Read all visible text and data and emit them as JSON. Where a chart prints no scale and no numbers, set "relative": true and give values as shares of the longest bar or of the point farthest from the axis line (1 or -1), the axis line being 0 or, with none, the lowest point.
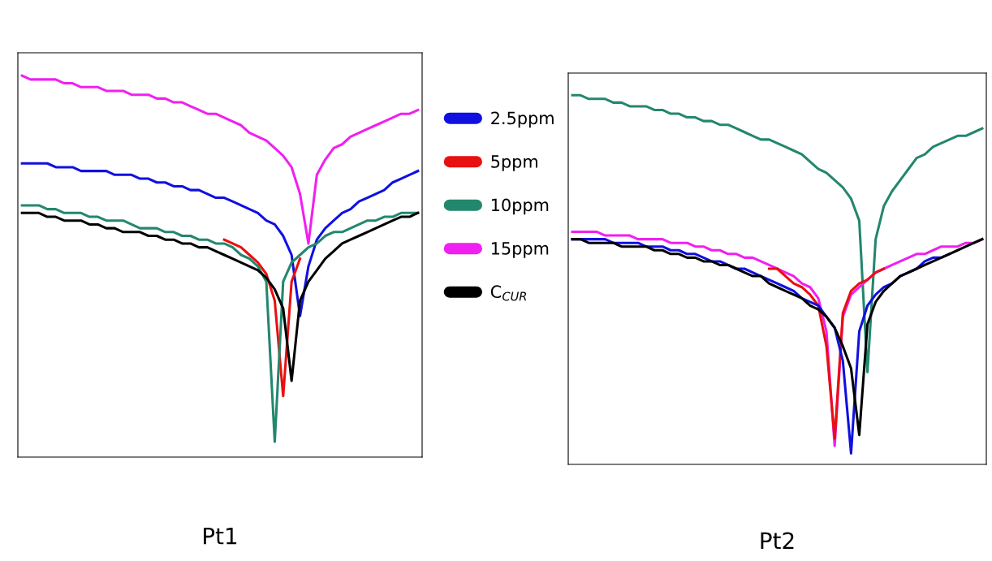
{
  "chart_data": [
    {
      "type": "line",
      "title": "Pt1",
      "relative": true,
      "legend": "right",
      "categories": [
        null,
        null,
        null,
        null,
        null,
        null,
        null,
        null,
        null,
        null,
        null,
        null,
        null,
        null,
        null,
        null,
        null,
        null,
        null,
        null,
        null,
        null,
        null,
        null,
        null,
        null,
        null,
        null,
        null,
        null,
        null,
        null,
        null,
        null,
        null,
        null,
        null,
        null,
        null,
        null,
        null,
        null,
        null,
        null,
        null,
        null,
        null,
        null
      ],
      "series": [
        {
          "name": "2.5ppm",
          "color": "#1010e0",
          "values": [
            0.77,
            0.77,
            0.77,
            0.77,
            0.76,
            0.76,
            0.76,
            0.75,
            0.75,
            0.75,
            0.75,
            0.74,
            0.74,
            0.74,
            0.73,
            0.73,
            0.72,
            0.72,
            0.71,
            0.71,
            0.7,
            0.7,
            0.69,
            0.68,
            0.68,
            0.67,
            0.66,
            0.65,
            0.64,
            0.62,
            0.61,
            0.58,
            0.53,
            0.37,
            0.5,
            0.57,
            0.6,
            0.62,
            0.64,
            0.65,
            0.67,
            0.68,
            0.69,
            0.7,
            0.72,
            0.73,
            0.74,
            0.75
          ]
        },
        {
          "name": "5ppm",
          "color": "#e81010",
          "values": [
            null,
            null,
            null,
            null,
            null,
            null,
            null,
            null,
            null,
            null,
            null,
            null,
            null,
            null,
            null,
            null,
            null,
            null,
            null,
            null,
            null,
            null,
            null,
            null,
            0.57,
            0.56,
            0.55,
            0.53,
            0.51,
            0.48,
            0.41,
            0.16,
            0.46,
            0.52,
            null,
            null,
            null,
            null,
            null,
            null,
            null,
            null,
            null,
            null,
            null,
            null,
            null,
            null
          ]
        },
        {
          "name": "10ppm",
          "color": "#23876e",
          "values": [
            0.66,
            0.66,
            0.66,
            0.65,
            0.65,
            0.64,
            0.64,
            0.64,
            0.63,
            0.63,
            0.62,
            0.62,
            0.62,
            0.61,
            0.6,
            0.6,
            0.6,
            0.59,
            0.59,
            0.58,
            0.58,
            0.57,
            0.57,
            0.56,
            0.56,
            0.55,
            0.53,
            0.52,
            0.5,
            0.46,
            0.04,
            0.46,
            0.51,
            0.53,
            0.55,
            0.56,
            0.58,
            0.59,
            0.59,
            0.6,
            0.61,
            0.62,
            0.62,
            0.63,
            0.63,
            0.64,
            0.64,
            0.64
          ]
        },
        {
          "name": "15ppm",
          "color": "#f020f0",
          "values": [
            1.0,
            0.99,
            0.99,
            0.99,
            0.99,
            0.98,
            0.98,
            0.97,
            0.97,
            0.97,
            0.96,
            0.96,
            0.96,
            0.95,
            0.95,
            0.95,
            0.94,
            0.94,
            0.93,
            0.93,
            0.92,
            0.91,
            0.9,
            0.9,
            0.89,
            0.88,
            0.87,
            0.85,
            0.84,
            0.83,
            0.81,
            0.79,
            0.76,
            0.69,
            0.56,
            0.74,
            0.78,
            0.81,
            0.82,
            0.84,
            0.85,
            0.86,
            0.87,
            0.88,
            0.89,
            0.9,
            0.9,
            0.91
          ]
        },
        {
          "name": "C$_{CUR}$",
          "color": "#000000",
          "values": [
            0.64,
            0.64,
            0.64,
            0.63,
            0.63,
            0.62,
            0.62,
            0.62,
            0.61,
            0.61,
            0.6,
            0.6,
            0.59,
            0.59,
            0.59,
            0.58,
            0.58,
            0.57,
            0.57,
            0.56,
            0.56,
            0.55,
            0.55,
            0.54,
            0.53,
            0.52,
            0.51,
            0.5,
            0.49,
            0.47,
            0.44,
            0.39,
            0.2,
            0.41,
            0.46,
            0.49,
            0.52,
            0.54,
            0.56,
            0.57,
            0.58,
            0.59,
            0.6,
            0.61,
            0.62,
            0.63,
            0.63,
            0.64
          ]
        }
      ]
    },
    {
      "type": "line",
      "title": "Pt2",
      "relative": true,
      "categories": [
        null,
        null,
        null,
        null,
        null,
        null,
        null,
        null,
        null,
        null,
        null,
        null,
        null,
        null,
        null,
        null,
        null,
        null,
        null,
        null,
        null,
        null,
        null,
        null,
        null,
        null,
        null,
        null,
        null,
        null,
        null,
        null,
        null,
        null,
        null,
        null,
        null,
        null,
        null,
        null,
        null,
        null,
        null,
        null,
        null,
        null,
        null,
        null,
        null,
        null,
        null
      ],
      "series": [
        {
          "color": "#23876e",
          "values": [
            1.0,
            1.0,
            0.99,
            0.99,
            0.99,
            0.98,
            0.98,
            0.97,
            0.97,
            0.97,
            0.96,
            0.96,
            0.95,
            0.95,
            0.94,
            0.94,
            0.93,
            0.93,
            0.92,
            0.92,
            0.91,
            0.9,
            0.89,
            0.88,
            0.88,
            0.87,
            0.86,
            0.85,
            0.84,
            0.82,
            0.8,
            0.79,
            0.77,
            0.75,
            0.72,
            0.66,
            0.25,
            0.61,
            0.7,
            0.74,
            0.77,
            0.8,
            0.83,
            0.84,
            0.86,
            0.87,
            0.88,
            0.89,
            0.89,
            0.9,
            0.91
          ]
        },
        {
          "color": "#f020f0",
          "values": [
            0.63,
            0.63,
            0.63,
            0.63,
            0.62,
            0.62,
            0.62,
            0.62,
            0.61,
            0.61,
            0.61,
            0.61,
            0.6,
            0.6,
            0.6,
            0.59,
            0.59,
            0.58,
            0.58,
            0.57,
            0.57,
            0.56,
            0.56,
            0.55,
            0.54,
            0.53,
            0.52,
            0.51,
            0.49,
            0.48,
            0.45,
            0.36,
            0.05,
            0.4,
            0.46,
            0.48,
            0.5,
            0.52,
            0.53,
            0.54,
            0.55,
            0.56,
            0.57,
            0.57,
            0.58,
            0.59,
            0.59,
            0.59,
            0.6,
            0.6,
            0.61
          ]
        },
        {
          "color": "#e81010",
          "values": [
            null,
            null,
            null,
            null,
            null,
            null,
            null,
            null,
            null,
            null,
            null,
            null,
            null,
            null,
            null,
            null,
            null,
            null,
            null,
            null,
            null,
            null,
            null,
            null,
            0.53,
            0.53,
            0.51,
            0.49,
            0.48,
            0.46,
            0.43,
            0.32,
            0.07,
            0.41,
            0.47,
            0.49,
            0.5,
            0.52,
            0.53,
            null,
            null,
            null,
            null,
            null,
            null,
            null,
            null,
            null,
            null,
            null,
            null
          ]
        },
        {
          "color": "#1010e0",
          "values": [
            0.61,
            0.61,
            0.61,
            0.61,
            0.61,
            0.6,
            0.6,
            0.6,
            0.6,
            0.59,
            0.59,
            0.59,
            0.58,
            0.58,
            0.57,
            0.57,
            0.56,
            0.55,
            0.55,
            0.54,
            0.53,
            0.53,
            0.52,
            0.51,
            0.5,
            0.49,
            0.48,
            0.47,
            0.45,
            0.44,
            0.43,
            0.4,
            0.37,
            0.28,
            0.03,
            0.36,
            0.43,
            0.46,
            0.48,
            0.49,
            0.51,
            0.52,
            0.53,
            0.55,
            0.56,
            0.56,
            0.57,
            null,
            null,
            null,
            null
          ]
        },
        {
          "color": "#000000",
          "values": [
            0.61,
            0.61,
            0.6,
            0.6,
            0.6,
            0.6,
            0.59,
            0.59,
            0.59,
            0.59,
            0.58,
            0.58,
            0.57,
            0.57,
            0.56,
            0.56,
            0.55,
            0.55,
            0.54,
            0.54,
            0.53,
            0.52,
            0.51,
            0.51,
            0.49,
            0.48,
            0.47,
            0.46,
            0.45,
            0.43,
            0.42,
            0.4,
            0.37,
            0.32,
            0.26,
            0.08,
            0.38,
            0.44,
            0.47,
            0.49,
            0.51,
            0.52,
            0.53,
            0.54,
            0.55,
            0.56,
            0.57,
            0.58,
            0.59,
            0.6,
            0.61
          ]
        }
      ]
    }
  ]
}
